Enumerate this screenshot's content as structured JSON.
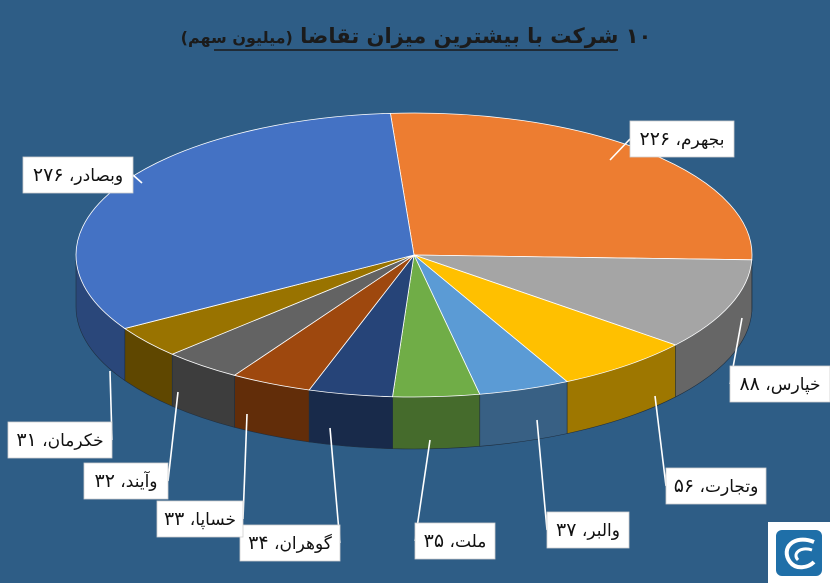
{
  "chart_data": {
    "type": "pie",
    "title": "۱۰ شرکت با بیشترین میزان تقاضا",
    "subtitle": "(میلیون سهم)",
    "slices": [
      {
        "label": "بجهرم",
        "value": 226,
        "value_text": "۲۲۶",
        "color": "#ed7d31"
      },
      {
        "label": "خپارس",
        "value": 88,
        "value_text": "۸۸",
        "color": "#a5a5a5"
      },
      {
        "label": "وتجارت",
        "value": 56,
        "value_text": "۵۶",
        "color": "#ffc000"
      },
      {
        "label": "والبر",
        "value": 37,
        "value_text": "۳۷",
        "color": "#5b9bd5"
      },
      {
        "label": "ملت",
        "value": 35,
        "value_text": "۳۵",
        "color": "#70ad47"
      },
      {
        "label": "گوهران",
        "value": 34,
        "value_text": "۳۴",
        "color": "#264478"
      },
      {
        "label": "خساپا",
        "value": 33,
        "value_text": "۳۳",
        "color": "#9e480e"
      },
      {
        "label": "وآیند",
        "value": 32,
        "value_text": "۳۲",
        "color": "#636363"
      },
      {
        "label": "خکرمان",
        "value": 31,
        "value_text": "۳۱",
        "color": "#997300"
      },
      {
        "label": "وبصادر",
        "value": 276,
        "value_text": "۲۷۶",
        "color": "#4472c4"
      }
    ],
    "label_separator": "،"
  }
}
